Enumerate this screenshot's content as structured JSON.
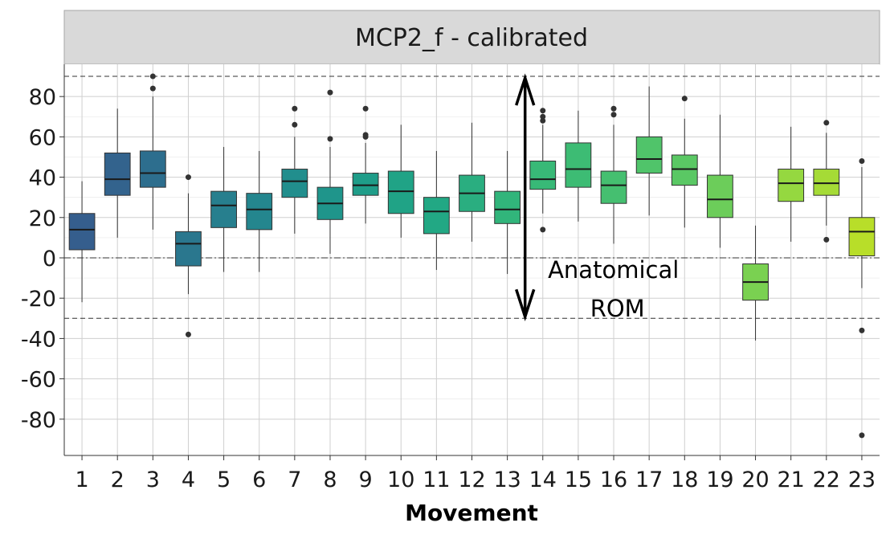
{
  "chart_data": {
    "type": "boxplot",
    "title": "MCP2_f - calibrated",
    "xlabel": "Movement",
    "ylabel": "",
    "ylim": [
      -98,
      96
    ],
    "y_ticks": [
      80,
      60,
      40,
      20,
      0,
      -20,
      -40,
      -60,
      -80
    ],
    "y_tick_labels": [
      "80",
      "60",
      "40",
      "20",
      "0",
      "-20",
      "-40",
      "-60",
      "-80"
    ],
    "grid": true,
    "legend": "none",
    "reference_lines": [
      {
        "y": 90,
        "style": "dashed"
      },
      {
        "y": -30,
        "style": "dashed"
      },
      {
        "y": 0,
        "style": "dotdash"
      }
    ],
    "annotation": {
      "arrow_x": 13.5,
      "arrow_from": -30,
      "arrow_to": 90,
      "text_lines": [
        "Anatomical",
        "ROM"
      ]
    },
    "categories": [
      "1",
      "2",
      "3",
      "4",
      "5",
      "6",
      "7",
      "8",
      "9",
      "10",
      "11",
      "12",
      "13",
      "14",
      "15",
      "16",
      "17",
      "18",
      "19",
      "20",
      "21",
      "22",
      "23"
    ],
    "boxes": [
      {
        "q1": 4,
        "median": 14,
        "q3": 22,
        "whisker_low": -22,
        "whisker_high": 38,
        "outliers": [],
        "color": "#355e8d"
      },
      {
        "q1": 31,
        "median": 39,
        "q3": 52,
        "whisker_low": 10,
        "whisker_high": 74,
        "outliers": [],
        "color": "#33638d"
      },
      {
        "q1": 35,
        "median": 42,
        "q3": 53,
        "whisker_low": 14,
        "whisker_high": 80,
        "outliers": [
          84,
          90
        ],
        "color": "#2d6e8e"
      },
      {
        "q1": -4,
        "median": 7,
        "q3": 13,
        "whisker_low": -18,
        "whisker_high": 32,
        "outliers": [
          40,
          -38
        ],
        "color": "#2a778e"
      },
      {
        "q1": 15,
        "median": 26,
        "q3": 33,
        "whisker_low": -7,
        "whisker_high": 55,
        "outliers": [],
        "color": "#277f8e"
      },
      {
        "q1": 14,
        "median": 24,
        "q3": 32,
        "whisker_low": -7,
        "whisker_high": 53,
        "outliers": [],
        "color": "#24868e"
      },
      {
        "q1": 30,
        "median": 38,
        "q3": 44,
        "whisker_low": 12,
        "whisker_high": 60,
        "outliers": [
          66,
          74
        ],
        "color": "#218e8d"
      },
      {
        "q1": 19,
        "median": 27,
        "q3": 35,
        "whisker_low": 2,
        "whisker_high": 55,
        "outliers": [
          59,
          82
        ],
        "color": "#1f958b"
      },
      {
        "q1": 31,
        "median": 36,
        "q3": 42,
        "whisker_low": 17,
        "whisker_high": 57,
        "outliers": [
          60,
          61,
          74
        ],
        "color": "#1f9d89"
      },
      {
        "q1": 22,
        "median": 33,
        "q3": 43,
        "whisker_low": 10,
        "whisker_high": 66,
        "outliers": [],
        "color": "#20a386"
      },
      {
        "q1": 12,
        "median": 23,
        "q3": 30,
        "whisker_low": -6,
        "whisker_high": 53,
        "outliers": [],
        "color": "#22a884"
      },
      {
        "q1": 23,
        "median": 32,
        "q3": 41,
        "whisker_low": 8,
        "whisker_high": 67,
        "outliers": [],
        "color": "#2aae80"
      },
      {
        "q1": 17,
        "median": 24,
        "q3": 33,
        "whisker_low": -8,
        "whisker_high": 53,
        "outliers": [],
        "color": "#31b57b"
      },
      {
        "q1": 34,
        "median": 39,
        "q3": 48,
        "whisker_low": 22,
        "whisker_high": 66,
        "outliers": [
          14,
          68,
          70,
          73
        ],
        "color": "#38b977"
      },
      {
        "q1": 35,
        "median": 44,
        "q3": 57,
        "whisker_low": 18,
        "whisker_high": 73,
        "outliers": [],
        "color": "#3dbc74"
      },
      {
        "q1": 27,
        "median": 36,
        "q3": 43,
        "whisker_low": 7,
        "whisker_high": 66,
        "outliers": [
          71,
          74
        ],
        "color": "#45bf70"
      },
      {
        "q1": 42,
        "median": 49,
        "q3": 60,
        "whisker_low": 21,
        "whisker_high": 85,
        "outliers": [],
        "color": "#50c46a"
      },
      {
        "q1": 36,
        "median": 44,
        "q3": 51,
        "whisker_low": 15,
        "whisker_high": 69,
        "outliers": [
          79
        ],
        "color": "#5ac864"
      },
      {
        "q1": 20,
        "median": 29,
        "q3": 41,
        "whisker_low": 5,
        "whisker_high": 71,
        "outliers": [],
        "color": "#6ccd5a"
      },
      {
        "q1": -21,
        "median": -12,
        "q3": -3,
        "whisker_low": -41,
        "whisker_high": 16,
        "outliers": [],
        "color": "#7ad151"
      },
      {
        "q1": 28,
        "median": 37,
        "q3": 44,
        "whisker_low": 8,
        "whisker_high": 65,
        "outliers": [],
        "color": "#95d840"
      },
      {
        "q1": 31,
        "median": 37,
        "q3": 44,
        "whisker_low": 16,
        "whisker_high": 62,
        "outliers": [
          9,
          67
        ],
        "color": "#a5db36"
      },
      {
        "q1": 1,
        "median": 13,
        "q3": 20,
        "whisker_low": -15,
        "whisker_high": 45,
        "outliers": [
          48,
          -36,
          -88
        ],
        "color": "#b8de29"
      }
    ]
  }
}
